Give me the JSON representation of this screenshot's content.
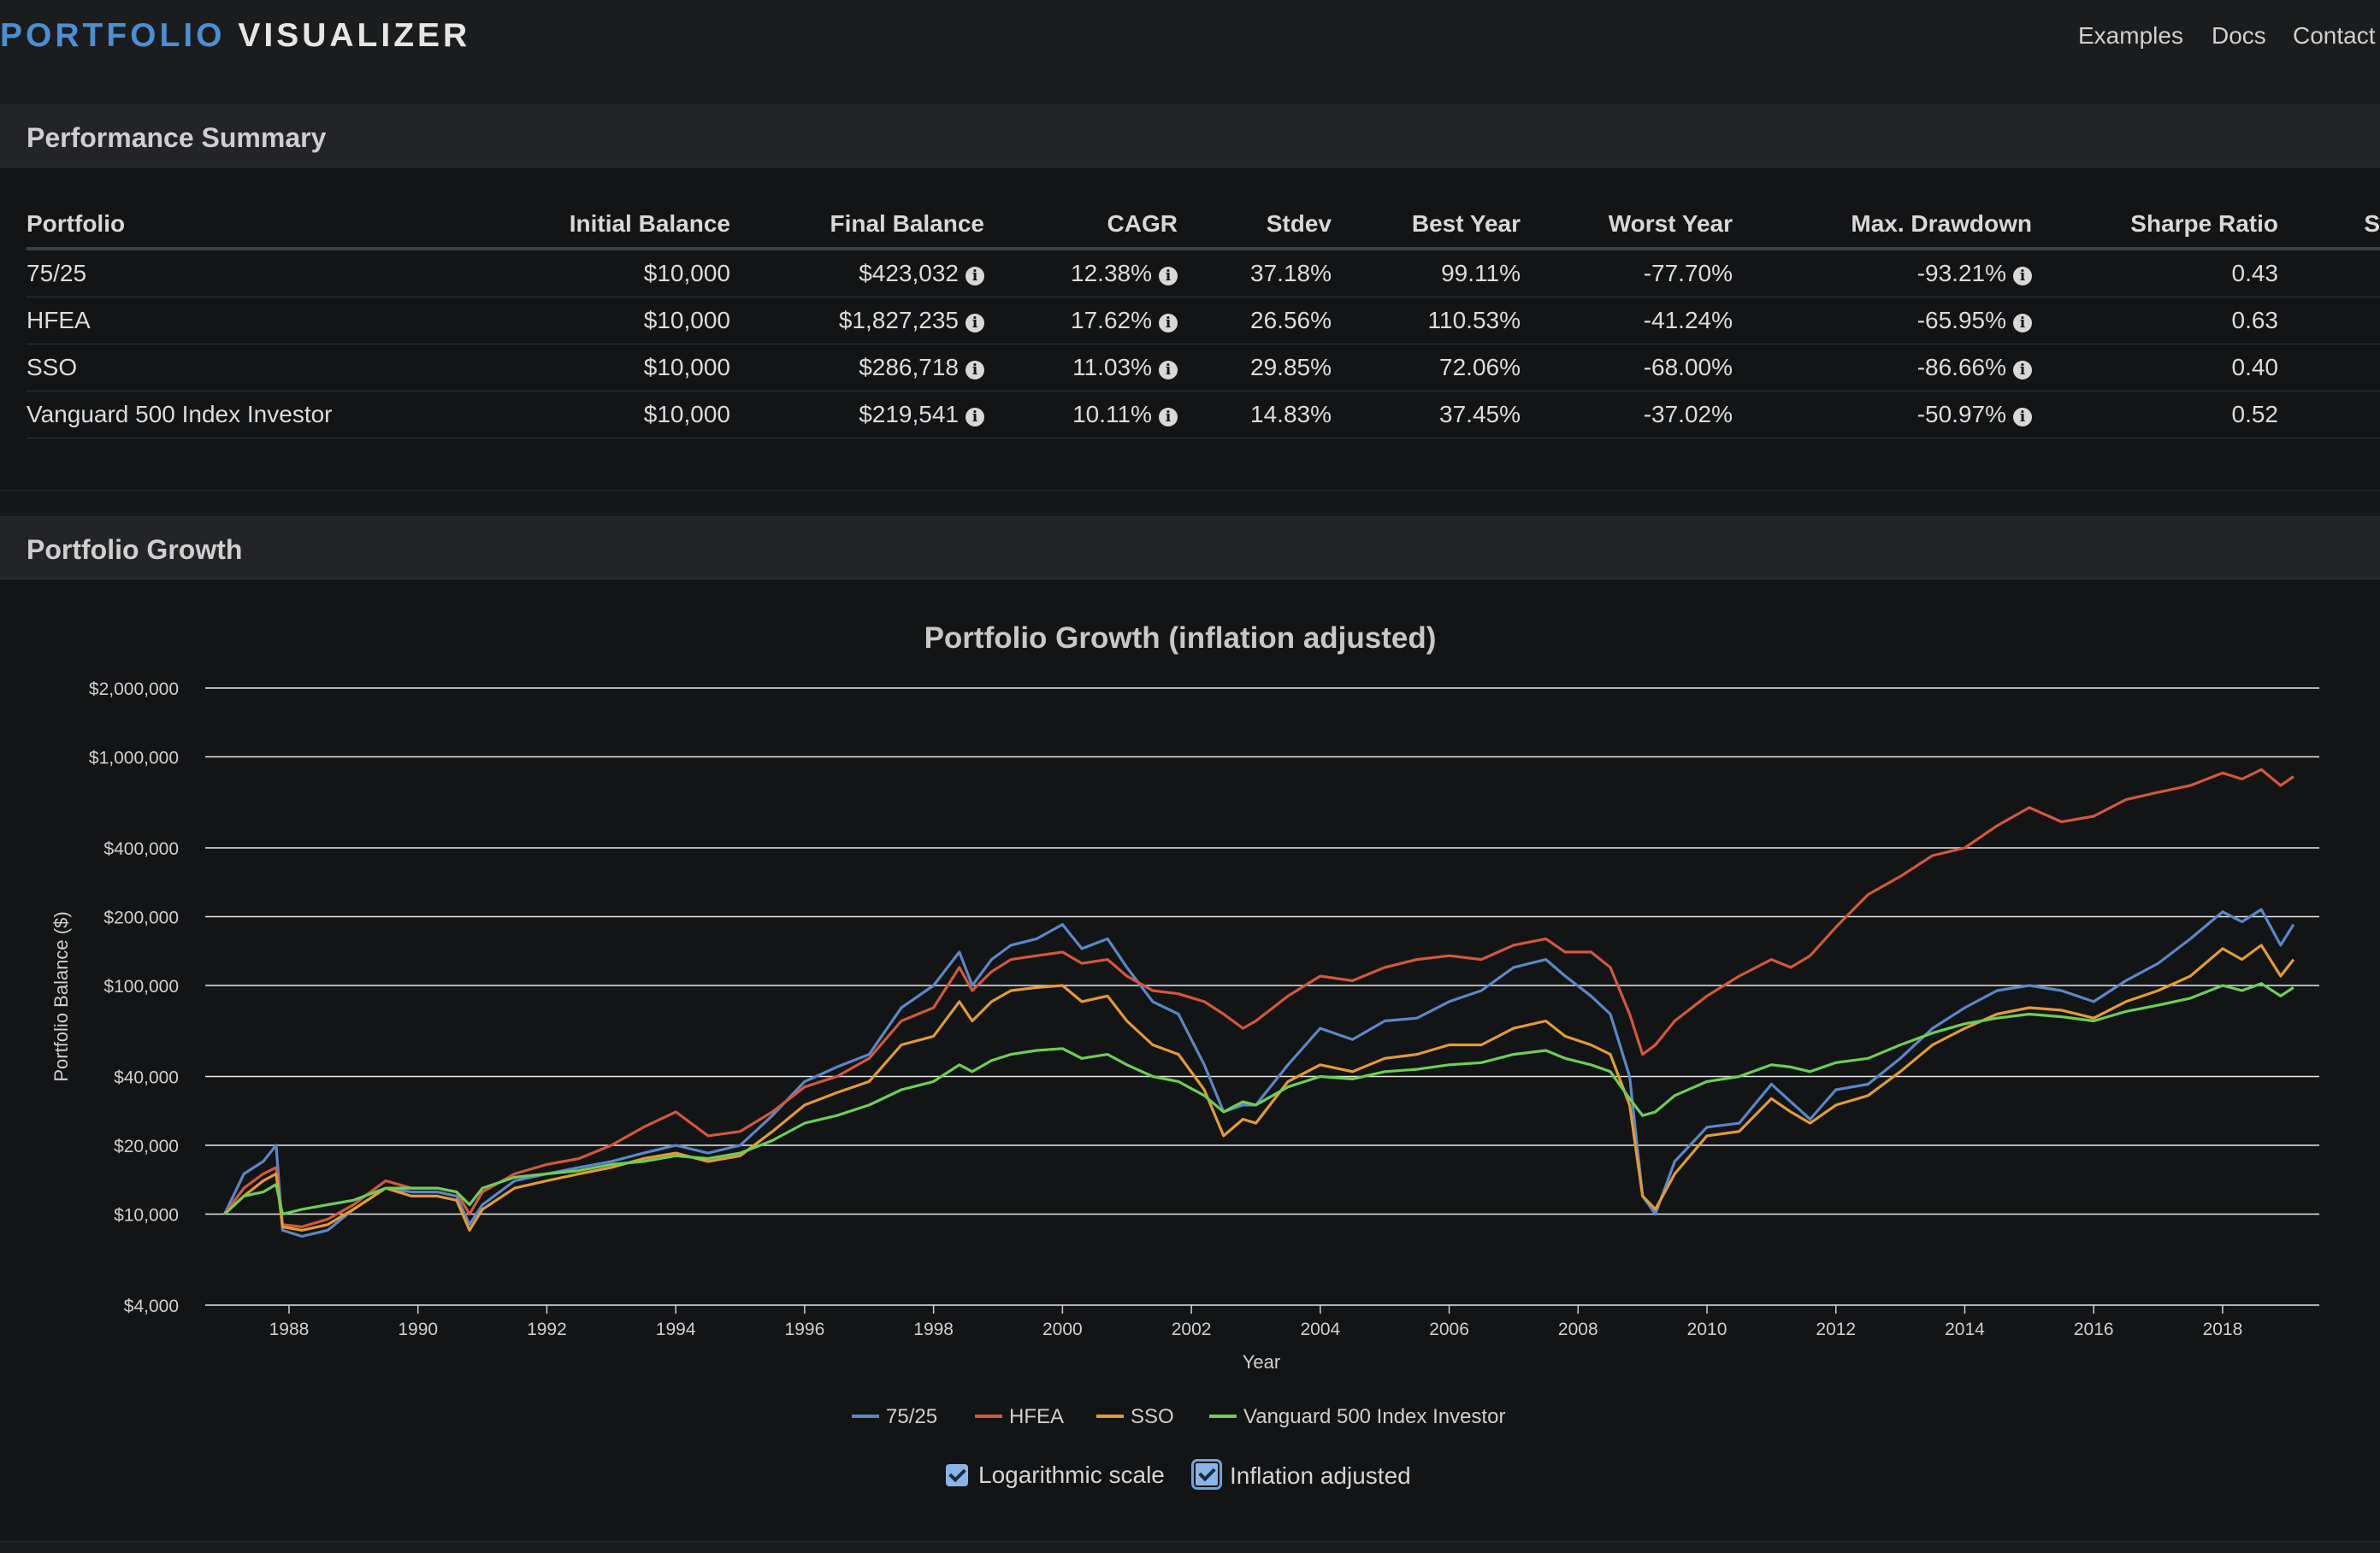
{
  "header": {
    "logo_part1": "PORTFOLIO",
    "logo_part2": "VISUALIZER",
    "nav": [
      "Examples",
      "Docs",
      "Contact"
    ]
  },
  "performance_summary": {
    "title": "Performance Summary",
    "columns": [
      "Portfolio",
      "Initial Balance",
      "Final Balance",
      "CAGR",
      "Stdev",
      "Best Year",
      "Worst Year",
      "Max. Drawdown",
      "Sharpe Ratio"
    ],
    "cut_off_column_glyph": "S",
    "rows": [
      [
        "75/25",
        "$10,000",
        "$423,032",
        "12.38%",
        "37.18%",
        "99.11%",
        "-77.70%",
        "-93.21%",
        "0.43"
      ],
      [
        "HFEA",
        "$10,000",
        "$1,827,235",
        "17.62%",
        "26.56%",
        "110.53%",
        "-41.24%",
        "-65.95%",
        "0.63"
      ],
      [
        "SSO",
        "$10,000",
        "$286,718",
        "11.03%",
        "29.85%",
        "72.06%",
        "-68.00%",
        "-86.66%",
        "0.40"
      ],
      [
        "Vanguard 500 Index Investor",
        "$10,000",
        "$219,541",
        "10.11%",
        "14.83%",
        "37.45%",
        "-37.02%",
        "-50.97%",
        "0.52"
      ]
    ]
  },
  "portfolio_growth": {
    "title": "Portfolio Growth",
    "controls": {
      "log_scale_label": "Logarithmic scale",
      "log_scale_checked": true,
      "inflation_label": "Inflation adjusted",
      "inflation_checked": true
    }
  },
  "colors": {
    "s7525": "#5b87c9",
    "hfea": "#d4583a",
    "sso": "#e39b33",
    "vfinx": "#6ccf55",
    "accent": "#4b8fd1"
  },
  "chart_data": {
    "type": "line",
    "title": "Portfolio Growth (inflation adjusted)",
    "xlabel": "Year",
    "ylabel": "Portfolio Balance ($)",
    "y_scale": "log",
    "ylim": [
      4000,
      2000000
    ],
    "xlim": [
      1986.7,
      2019.5
    ],
    "x_ticks": [
      "1988",
      "1990",
      "1992",
      "1994",
      "1996",
      "1998",
      "2000",
      "2002",
      "2004",
      "2006",
      "2008",
      "2010",
      "2012",
      "2014",
      "2016",
      "2018"
    ],
    "y_ticks": [
      {
        "value": 4000,
        "label": "$4,000"
      },
      {
        "value": 10000,
        "label": "$10,000"
      },
      {
        "value": 20000,
        "label": "$20,000"
      },
      {
        "value": 40000,
        "label": "$40,000"
      },
      {
        "value": 100000,
        "label": "$100,000"
      },
      {
        "value": 200000,
        "label": "$200,000"
      },
      {
        "value": 400000,
        "label": "$400,000"
      },
      {
        "value": 1000000,
        "label": "$1,000,000"
      },
      {
        "value": 2000000,
        "label": "$2,000,000"
      }
    ],
    "grid": true,
    "legend_position": "bottom",
    "x": [
      1987.0,
      1987.3,
      1987.6,
      1987.8,
      1987.9,
      1988.2,
      1988.6,
      1989.0,
      1989.5,
      1989.9,
      1990.3,
      1990.6,
      1990.8,
      1991.0,
      1991.5,
      1992.0,
      1992.5,
      1993.0,
      1993.5,
      1994.0,
      1994.5,
      1995.0,
      1995.5,
      1996.0,
      1996.5,
      1997.0,
      1997.5,
      1998.0,
      1998.4,
      1998.6,
      1998.9,
      1999.2,
      1999.6,
      2000.0,
      2000.3,
      2000.7,
      2001.0,
      2001.4,
      2001.8,
      2002.2,
      2002.5,
      2002.8,
      2003.0,
      2003.5,
      2004.0,
      2004.5,
      2005.0,
      2005.5,
      2006.0,
      2006.5,
      2007.0,
      2007.5,
      2007.8,
      2008.2,
      2008.5,
      2008.8,
      2009.0,
      2009.2,
      2009.5,
      2010.0,
      2010.5,
      2011.0,
      2011.3,
      2011.6,
      2012.0,
      2012.5,
      2013.0,
      2013.5,
      2014.0,
      2014.5,
      2015.0,
      2015.5,
      2016.0,
      2016.5,
      2017.0,
      2017.5,
      2018.0,
      2018.3,
      2018.6,
      2018.9,
      2019.1
    ],
    "series": [
      {
        "name": "75/25",
        "color_key": "s7525",
        "values": [
          10000,
          15000,
          17000,
          20000,
          8500,
          8000,
          8500,
          10500,
          13000,
          12500,
          12500,
          12000,
          9000,
          11000,
          14000,
          15000,
          16000,
          17000,
          18500,
          20000,
          18500,
          20000,
          27000,
          38000,
          44000,
          50000,
          80000,
          100000,
          140000,
          100000,
          130000,
          150000,
          160000,
          185000,
          145000,
          160000,
          120000,
          85000,
          75000,
          45000,
          28000,
          30000,
          30000,
          45000,
          65000,
          58000,
          70000,
          72000,
          85000,
          95000,
          120000,
          130000,
          110000,
          90000,
          75000,
          40000,
          12000,
          10000,
          17000,
          24000,
          25000,
          37000,
          31000,
          26000,
          35000,
          37000,
          48000,
          65000,
          80000,
          95000,
          100000,
          95000,
          85000,
          105000,
          125000,
          160000,
          210000,
          190000,
          215000,
          150000,
          185000
        ]
      },
      {
        "name": "HFEA",
        "color_key": "hfea",
        "values": [
          10000,
          13000,
          15000,
          16000,
          9000,
          8800,
          9500,
          11000,
          14000,
          13000,
          13000,
          12500,
          10000,
          12500,
          15000,
          16500,
          17500,
          20000,
          24000,
          28000,
          22000,
          23000,
          28000,
          36000,
          40000,
          48000,
          70000,
          80000,
          120000,
          95000,
          115000,
          130000,
          135000,
          140000,
          125000,
          130000,
          110000,
          95000,
          92000,
          85000,
          75000,
          65000,
          70000,
          90000,
          110000,
          105000,
          120000,
          130000,
          135000,
          130000,
          150000,
          160000,
          140000,
          140000,
          120000,
          75000,
          50000,
          55000,
          70000,
          90000,
          110000,
          130000,
          120000,
          135000,
          180000,
          250000,
          300000,
          370000,
          400000,
          500000,
          600000,
          520000,
          550000,
          650000,
          700000,
          750000,
          850000,
          800000,
          880000,
          750000,
          820000
        ]
      },
      {
        "name": "SSO",
        "color_key": "sso",
        "values": [
          10000,
          12000,
          14000,
          15000,
          8800,
          8500,
          9000,
          10500,
          13000,
          12000,
          12000,
          11500,
          8500,
          10500,
          13000,
          14000,
          15000,
          16000,
          17500,
          18500,
          17000,
          18000,
          23000,
          30000,
          34000,
          38000,
          55000,
          60000,
          85000,
          70000,
          85000,
          95000,
          98000,
          100000,
          85000,
          90000,
          70000,
          55000,
          50000,
          35000,
          22000,
          26000,
          25000,
          38000,
          45000,
          42000,
          48000,
          50000,
          55000,
          55000,
          65000,
          70000,
          60000,
          55000,
          50000,
          30000,
          12000,
          10500,
          15000,
          22000,
          23000,
          32000,
          28000,
          25000,
          30000,
          33000,
          42000,
          55000,
          65000,
          75000,
          80000,
          78000,
          72000,
          85000,
          95000,
          110000,
          145000,
          130000,
          150000,
          110000,
          130000
        ]
      },
      {
        "name": "Vanguard 500 Index Investor",
        "color_key": "vfinx",
        "values": [
          10000,
          12000,
          12500,
          13500,
          10000,
          10500,
          11000,
          11500,
          13000,
          13000,
          13000,
          12500,
          11000,
          13000,
          14500,
          15000,
          15500,
          16500,
          17000,
          18000,
          17500,
          18500,
          21000,
          25000,
          27000,
          30000,
          35000,
          38000,
          45000,
          42000,
          47000,
          50000,
          52000,
          53000,
          48000,
          50000,
          45000,
          40000,
          38000,
          33000,
          28000,
          31000,
          30000,
          36000,
          40000,
          39000,
          42000,
          43000,
          45000,
          46000,
          50000,
          52000,
          48000,
          45000,
          42000,
          32000,
          27000,
          28000,
          33000,
          38000,
          40000,
          45000,
          44000,
          42000,
          46000,
          48000,
          55000,
          62000,
          68000,
          72000,
          75000,
          73000,
          70000,
          77000,
          82000,
          88000,
          100000,
          95000,
          102000,
          90000,
          98000
        ]
      }
    ]
  }
}
